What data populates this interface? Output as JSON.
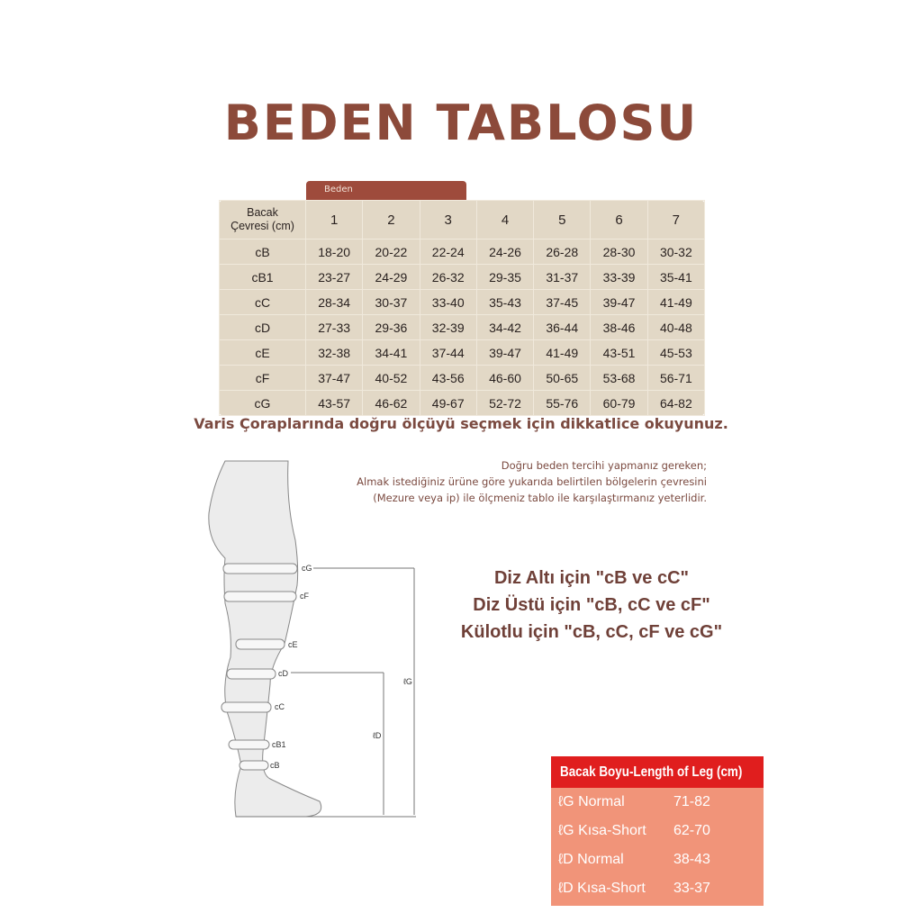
{
  "title": "BEDEN TABLOSU",
  "table": {
    "group_label": "Beden",
    "row_header_label": [
      "Bacak",
      "Çevresi (cm)"
    ],
    "columns": [
      "1",
      "2",
      "3",
      "4",
      "5",
      "6",
      "7"
    ],
    "rows": [
      {
        "label": "cB",
        "values": [
          "18-20",
          "20-22",
          "22-24",
          "24-26",
          "26-28",
          "28-30",
          "30-32"
        ]
      },
      {
        "label": "cB1",
        "values": [
          "23-27",
          "24-29",
          "26-32",
          "29-35",
          "31-37",
          "33-39",
          "35-41"
        ]
      },
      {
        "label": "cC",
        "values": [
          "28-34",
          "30-37",
          "33-40",
          "35-43",
          "37-45",
          "39-47",
          "41-49"
        ]
      },
      {
        "label": "cD",
        "values": [
          "27-33",
          "29-36",
          "32-39",
          "34-42",
          "36-44",
          "38-46",
          "40-48"
        ]
      },
      {
        "label": "cE",
        "values": [
          "32-38",
          "34-41",
          "37-44",
          "39-47",
          "41-49",
          "43-51",
          "45-53"
        ]
      },
      {
        "label": "cF",
        "values": [
          "37-47",
          "40-52",
          "43-56",
          "46-60",
          "50-65",
          "53-68",
          "56-71"
        ]
      },
      {
        "label": "cG",
        "values": [
          "43-57",
          "46-62",
          "49-67",
          "52-72",
          "55-76",
          "60-79",
          "64-82"
        ]
      }
    ]
  },
  "caption": "Varis Çoraplarında doğru ölçüyü seçmek için dikkatlice okuyunuz.",
  "instructions": [
    "Doğru beden tercihi yapmanız gereken;",
    "Almak istediğiniz ürüne göre yukarıda belirtilen bölgelerin çevresini",
    "(Mezure veya ip) ile ölçmeniz tablo ile karşılaştırmanız yeterlidir."
  ],
  "usage": [
    "Diz Altı için \"cB ve cC\"",
    "Diz Üstü için \"cB, cC ve cF\"",
    "Külotlu için \"cB, cC, cF ve cG\""
  ],
  "diagram_labels": {
    "cG": "cG",
    "cF": "cF",
    "cE": "cE",
    "cD": "cD",
    "cC": "cC",
    "cB1": "cB1",
    "cB": "cB",
    "lG": "ℓG",
    "lD": "ℓD"
  },
  "leg_length": {
    "title": "Bacak Boyu-Length of Leg (cm)",
    "rows": [
      {
        "label": "ℓG Normal",
        "value": "71-82"
      },
      {
        "label": "ℓG Kısa-Short",
        "value": "62-70"
      },
      {
        "label": "ℓD Normal",
        "value": "38-43"
      },
      {
        "label": "ℓD Kısa-Short",
        "value": "33-37"
      }
    ]
  },
  "colors": {
    "title": "#8c4a3a",
    "table_bg": "#e2d8c6",
    "tab": "#9e4b3c",
    "leg_header": "#e01e1e",
    "leg_body": "#f19479"
  }
}
